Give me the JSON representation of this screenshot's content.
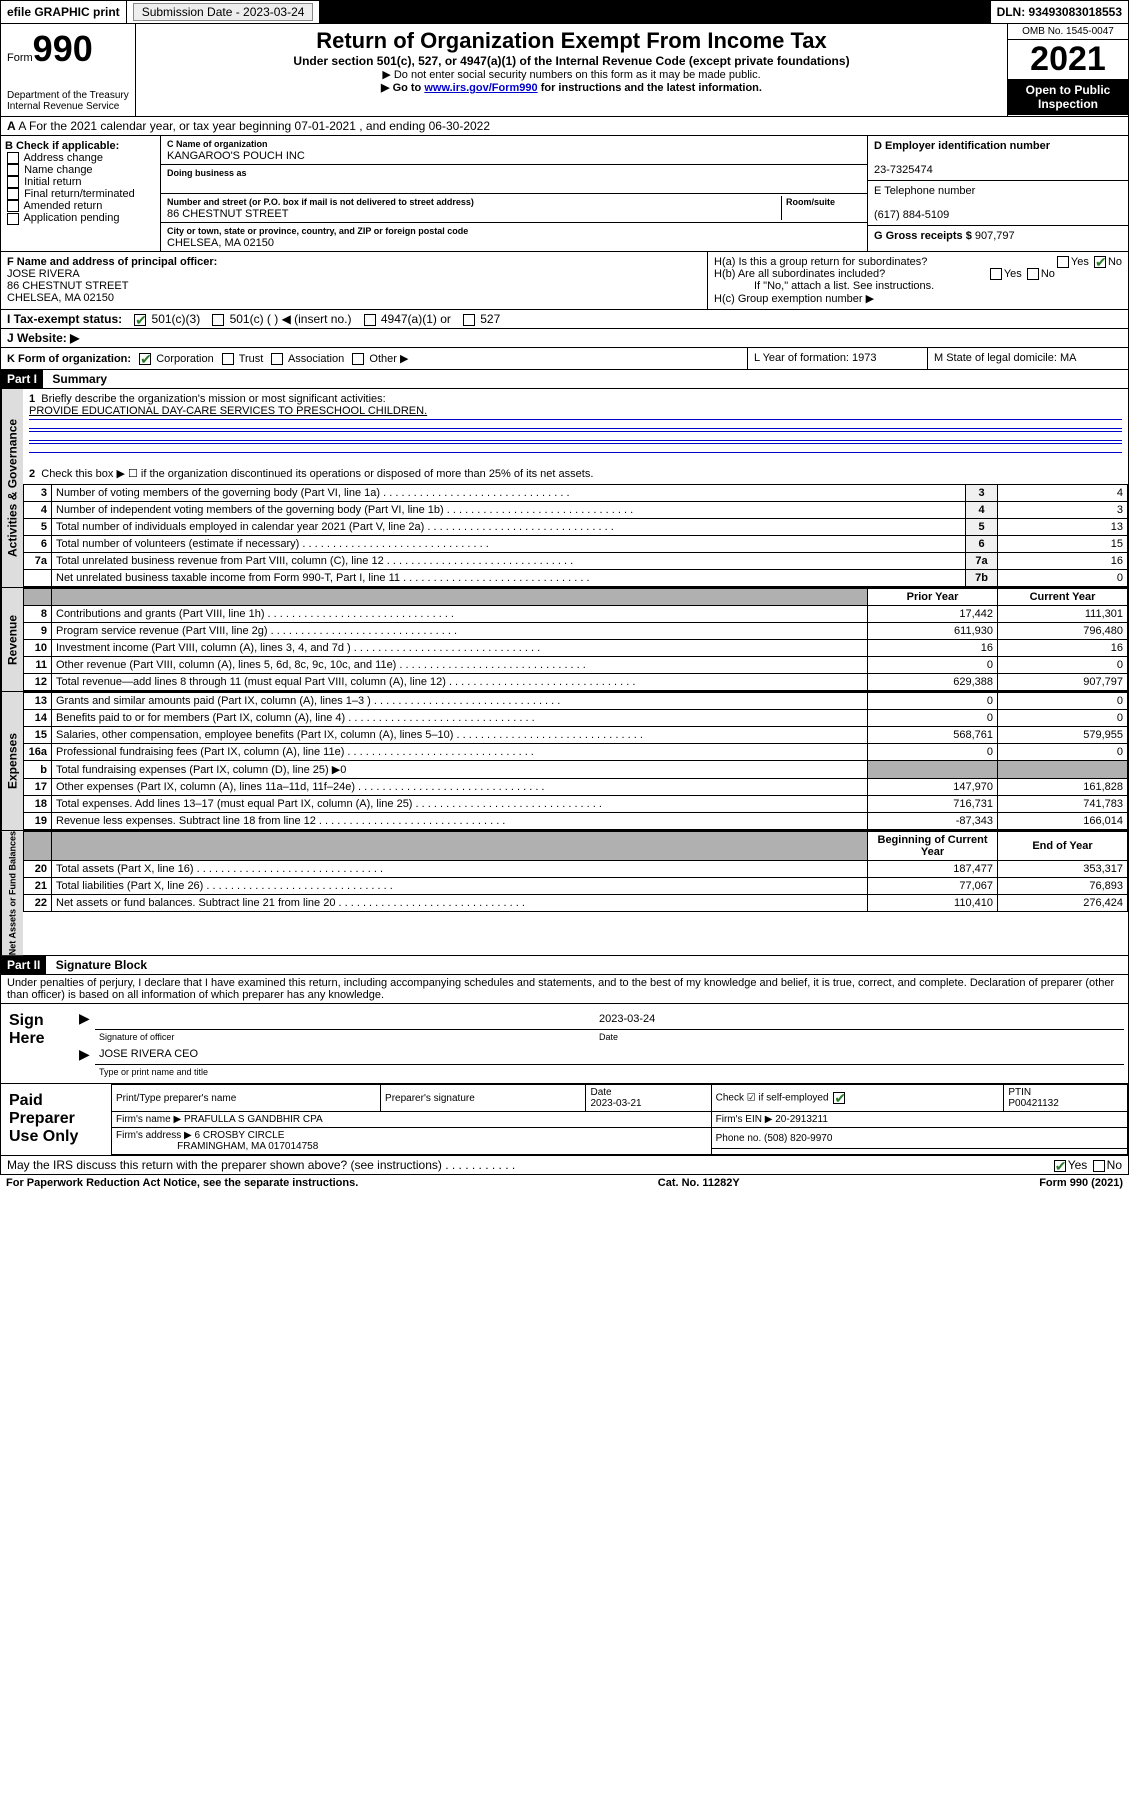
{
  "topbar": {
    "efile": "efile GRAPHIC print",
    "submission_label": "Submission Date - 2023-03-24",
    "dln": "DLN: 93493083018553"
  },
  "header": {
    "form_prefix": "Form",
    "form_no": "990",
    "dept": "Department of the Treasury",
    "irs": "Internal Revenue Service",
    "title": "Return of Organization Exempt From Income Tax",
    "subtitle": "Under section 501(c), 527, or 4947(a)(1) of the Internal Revenue Code (except private foundations)",
    "note1": "▶ Do not enter social security numbers on this form as it may be made public.",
    "note2_pre": "▶ Go to ",
    "note2_link": "www.irs.gov/Form990",
    "note2_post": " for instructions and the latest information.",
    "omb": "OMB No. 1545-0047",
    "year": "2021",
    "inspect": "Open to Public Inspection"
  },
  "row_a": "A For the 2021 calendar year, or tax year beginning 07-01-2021   , and ending 06-30-2022",
  "b": {
    "label": "B Check if applicable:",
    "items": [
      "Address change",
      "Name change",
      "Initial return",
      "Final return/terminated",
      "Amended return",
      "Application pending"
    ]
  },
  "c": {
    "name_lbl": "C Name of organization",
    "name": "KANGAROO'S POUCH INC",
    "dba_lbl": "Doing business as",
    "addr_lbl": "Number and street (or P.O. box if mail is not delivered to street address)",
    "room_lbl": "Room/suite",
    "addr": "86 CHESTNUT STREET",
    "city_lbl": "City or town, state or province, country, and ZIP or foreign postal code",
    "city": "CHELSEA, MA  02150"
  },
  "d": {
    "lbl": "D Employer identification number",
    "val": "23-7325474"
  },
  "e": {
    "lbl": "E Telephone number",
    "val": "(617) 884-5109"
  },
  "g": {
    "lbl": "G Gross receipts $",
    "val": "907,797"
  },
  "f": {
    "lbl": "F  Name and address of principal officer:",
    "name": "JOSE RIVERA",
    "addr1": "86 CHESTNUT STREET",
    "addr2": "CHELSEA, MA  02150"
  },
  "h": {
    "a": "H(a)  Is this a group return for subordinates?",
    "b": "H(b)  Are all subordinates included?",
    "note": "If \"No,\" attach a list. See instructions.",
    "c": "H(c)  Group exemption number ▶"
  },
  "i": {
    "lbl": "I     Tax-exempt status:",
    "opts": [
      "501(c)(3)",
      "501(c) (  ) ◀ (insert no.)",
      "4947(a)(1) or",
      "527"
    ]
  },
  "j": "J     Website: ▶",
  "k": {
    "lbl": "K Form of organization:",
    "opts": [
      "Corporation",
      "Trust",
      "Association",
      "Other ▶"
    ]
  },
  "l": "L Year of formation: 1973",
  "m": "M State of legal domicile: MA",
  "part1": {
    "hdr": "Part I",
    "title": "Summary",
    "line1_lbl": "Briefly describe the organization's mission or most significant activities:",
    "line1_val": "PROVIDE EDUCATIONAL DAY-CARE SERVICES TO PRESCHOOL CHILDREN.",
    "line2": "Check this box ▶ ☐  if the organization discontinued its operations or disposed of more than 25% of its net assets.",
    "gov_rows": [
      {
        "n": "3",
        "t": "Number of voting members of the governing body (Part VI, line 1a)",
        "r": "3",
        "v": "4"
      },
      {
        "n": "4",
        "t": "Number of independent voting members of the governing body (Part VI, line 1b)",
        "r": "4",
        "v": "3"
      },
      {
        "n": "5",
        "t": "Total number of individuals employed in calendar year 2021 (Part V, line 2a)",
        "r": "5",
        "v": "13"
      },
      {
        "n": "6",
        "t": "Total number of volunteers (estimate if necessary)",
        "r": "6",
        "v": "15"
      },
      {
        "n": "7a",
        "t": "Total unrelated business revenue from Part VIII, column (C), line 12",
        "r": "7a",
        "v": "16"
      },
      {
        "n": "",
        "t": "Net unrelated business taxable income from Form 990-T, Part I, line 11",
        "r": "7b",
        "v": "0"
      }
    ],
    "py_hdr": "Prior Year",
    "cy_hdr": "Current Year",
    "rev_rows": [
      {
        "n": "8",
        "t": "Contributions and grants (Part VIII, line 1h)",
        "p": "17,442",
        "c": "111,301"
      },
      {
        "n": "9",
        "t": "Program service revenue (Part VIII, line 2g)",
        "p": "611,930",
        "c": "796,480"
      },
      {
        "n": "10",
        "t": "Investment income (Part VIII, column (A), lines 3, 4, and 7d )",
        "p": "16",
        "c": "16"
      },
      {
        "n": "11",
        "t": "Other revenue (Part VIII, column (A), lines 5, 6d, 8c, 9c, 10c, and 11e)",
        "p": "0",
        "c": "0"
      },
      {
        "n": "12",
        "t": "Total revenue—add lines 8 through 11 (must equal Part VIII, column (A), line 12)",
        "p": "629,388",
        "c": "907,797"
      }
    ],
    "exp_rows": [
      {
        "n": "13",
        "t": "Grants and similar amounts paid (Part IX, column (A), lines 1–3 )",
        "p": "0",
        "c": "0"
      },
      {
        "n": "14",
        "t": "Benefits paid to or for members (Part IX, column (A), line 4)",
        "p": "0",
        "c": "0"
      },
      {
        "n": "15",
        "t": "Salaries, other compensation, employee benefits (Part IX, column (A), lines 5–10)",
        "p": "568,761",
        "c": "579,955"
      },
      {
        "n": "16a",
        "t": "Professional fundraising fees (Part IX, column (A), line 11e)",
        "p": "0",
        "c": "0"
      },
      {
        "n": "b",
        "t": "Total fundraising expenses (Part IX, column (D), line 25) ▶0",
        "p": "",
        "c": "",
        "grey": true
      },
      {
        "n": "17",
        "t": "Other expenses (Part IX, column (A), lines 11a–11d, 11f–24e)",
        "p": "147,970",
        "c": "161,828"
      },
      {
        "n": "18",
        "t": "Total expenses. Add lines 13–17 (must equal Part IX, column (A), line 25)",
        "p": "716,731",
        "c": "741,783"
      },
      {
        "n": "19",
        "t": "Revenue less expenses. Subtract line 18 from line 12",
        "p": "-87,343",
        "c": "166,014"
      }
    ],
    "boy_hdr": "Beginning of Current Year",
    "eoy_hdr": "End of Year",
    "net_rows": [
      {
        "n": "20",
        "t": "Total assets (Part X, line 16)",
        "p": "187,477",
        "c": "353,317"
      },
      {
        "n": "21",
        "t": "Total liabilities (Part X, line 26)",
        "p": "77,067",
        "c": "76,893"
      },
      {
        "n": "22",
        "t": "Net assets or fund balances. Subtract line 21 from line 20",
        "p": "110,410",
        "c": "276,424"
      }
    ]
  },
  "part2": {
    "hdr": "Part II",
    "title": "Signature Block",
    "decl": "Under penalties of perjury, I declare that I have examined this return, including accompanying schedules and statements, and to the best of my knowledge and belief, it is true, correct, and complete. Declaration of preparer (other than officer) is based on all information of which preparer has any knowledge."
  },
  "sign": {
    "here": "Sign Here",
    "sig_lbl": "Signature of officer",
    "date": "2023-03-24",
    "date_lbl": "Date",
    "name": "JOSE RIVERA  CEO",
    "name_lbl": "Type or print name and title"
  },
  "prep": {
    "lbl": "Paid Preparer Use Only",
    "h1": "Print/Type preparer's name",
    "h2": "Preparer's signature",
    "h3": "Date",
    "h3v": "2023-03-21",
    "h4": "Check ☑ if self-employed",
    "h5": "PTIN",
    "h5v": "P00421132",
    "firm_name_lbl": "Firm's name    ▶",
    "firm_name": "PRAFULLA S GANDBHIR CPA",
    "firm_ein_lbl": "Firm's EIN ▶",
    "firm_ein": "20-2913211",
    "firm_addr_lbl": "Firm's address ▶",
    "firm_addr1": "6 CROSBY CIRCLE",
    "firm_addr2": "FRAMINGHAM, MA  017014758",
    "phone_lbl": "Phone no.",
    "phone": "(508) 820-9970"
  },
  "discuss": "May the IRS discuss this return with the preparer shown above? (see instructions)",
  "footer": {
    "l": "For Paperwork Reduction Act Notice, see the separate instructions.",
    "c": "Cat. No. 11282Y",
    "r": "Form 990 (2021)"
  }
}
